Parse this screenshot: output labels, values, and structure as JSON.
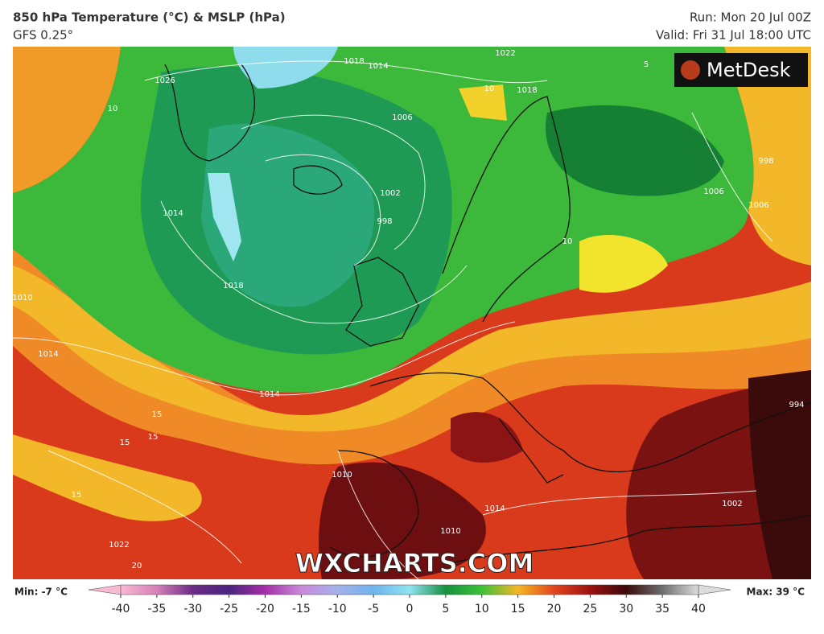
{
  "header": {
    "title": "850 hPa Temperature (°C) & MSLP (hPa)",
    "subtitle": "GFS 0.25°",
    "run": "Run: Mon 20 Jul 00Z",
    "valid": "Valid: Fri 31 Jul 18:00 UTC"
  },
  "map": {
    "logo": "MetDesk",
    "watermark": "WXCHARTS.COM",
    "contour_labels": [
      "1026",
      "10",
      "1018",
      "1014",
      "1022",
      "1018",
      "10",
      "1006",
      "1002",
      "998",
      "5",
      "1014",
      "1018",
      "1010",
      "1014",
      "1014",
      "15",
      "15",
      "15",
      "15",
      "1022",
      "20",
      "1010",
      "1014",
      "1010",
      "1002",
      "994",
      "1006",
      "1006",
      "998",
      "10"
    ]
  },
  "legend": {
    "min_label": "Min: -7 °C",
    "max_label": "Max: 39 °C",
    "ticks": [
      -40,
      -35,
      -30,
      -25,
      -20,
      -15,
      -10,
      -5,
      0,
      5,
      10,
      15,
      20,
      25,
      30,
      35,
      40
    ],
    "colors": [
      "#f7b9d3",
      "#d77fb8",
      "#6b2a86",
      "#4a2580",
      "#a52ea6",
      "#c98ad9",
      "#a5b1ea",
      "#6fb3ee",
      "#8fe3f0",
      "#16913f",
      "#3cc13a",
      "#f5b724",
      "#e2461e",
      "#9c1212",
      "#3a0909",
      "#6e6e6e",
      "#dcdcdc"
    ]
  }
}
